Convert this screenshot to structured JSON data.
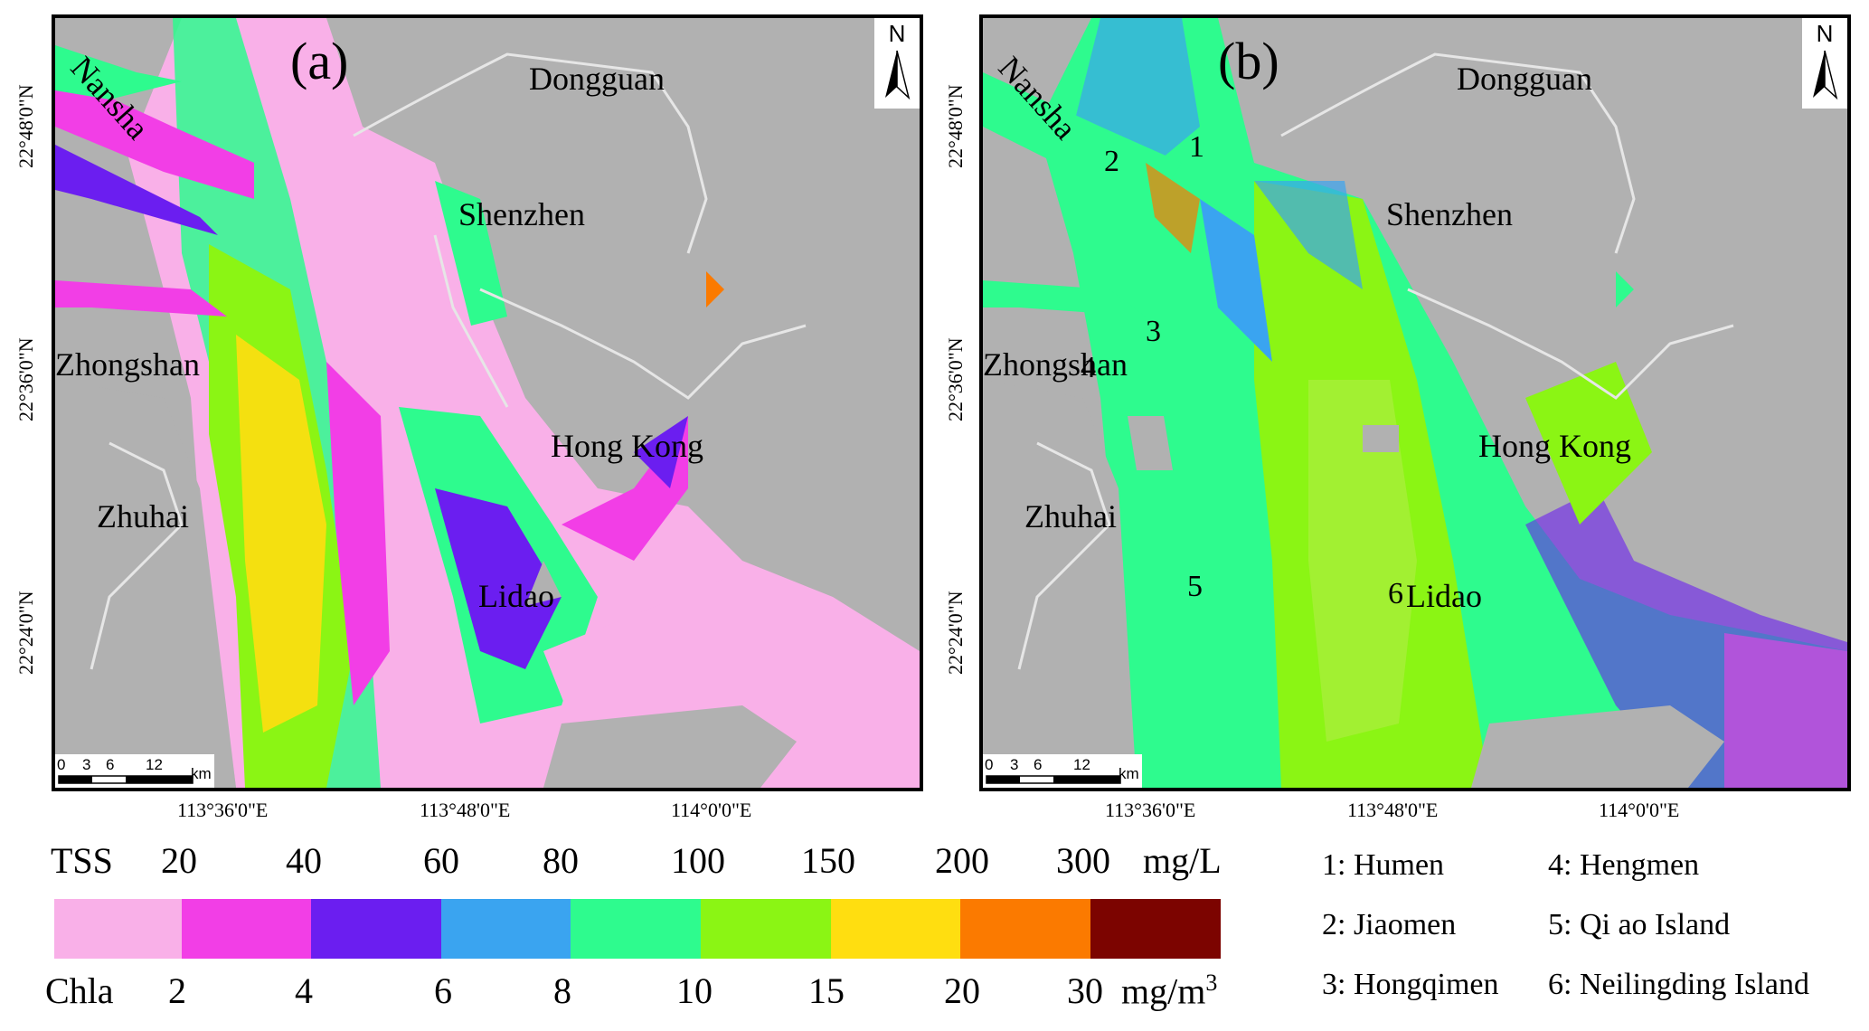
{
  "panels": [
    {
      "label": "(a)",
      "places": {
        "dongguan": "Dongguan",
        "shenzhen": "Shenzhen",
        "zhongshan": "Zhongshan",
        "hongkong": "Hong Kong",
        "zhuhai": "Zhuhai",
        "lidao": "Lidao",
        "nansha": "Nansha"
      }
    },
    {
      "label": "(b)",
      "places": {
        "dongguan": "Dongguan",
        "shenzhen": "Shenzhen",
        "zhongshan": "Zhongshan",
        "hongkong": "Hong Kong",
        "zhuhai": "Zhuhai",
        "lidao": "Lidao",
        "nansha": "Nansha"
      },
      "numbers": [
        "1",
        "2",
        "3",
        "4",
        "5",
        "6"
      ]
    }
  ],
  "north_label": "N",
  "scalebar": {
    "ticks": [
      "0",
      "3",
      "6",
      "12"
    ],
    "unit": "km"
  },
  "latitudes": [
    "22°48'0\"N",
    "22°36'0\"N",
    "22°24'0\"N"
  ],
  "longitudes": [
    "113°36'0\"E",
    "113°48'0\"E",
    "114°0'0\"E"
  ],
  "legend": {
    "tss_label": "TSS",
    "tss_values": [
      "20",
      "40",
      "60",
      "80",
      "100",
      "150",
      "200",
      "300"
    ],
    "tss_unit": "mg/L",
    "chla_label": "Chla",
    "chla_values": [
      "2",
      "4",
      "6",
      "8",
      "10",
      "15",
      "20",
      "30"
    ],
    "chla_unit": "mg/m",
    "chla_unit_sup": "3",
    "colors": [
      "#f9b0e8",
      "#f23ee6",
      "#6b1ef0",
      "#3aa4f0",
      "#2efb8e",
      "#8bf514",
      "#ffde10",
      "#fb7a00",
      "#7c0400"
    ]
  },
  "key": [
    "1: Humen",
    "4: Hengmen",
    "2: Jiaomen",
    "5: Qi ao Island",
    "3: Hongqimen",
    "6: Neilingding Island"
  ]
}
